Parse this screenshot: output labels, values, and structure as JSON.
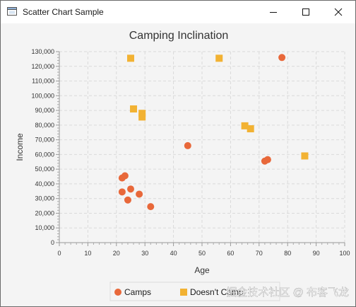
{
  "window": {
    "title": "Scatter Chart Sample"
  },
  "chart_data": {
    "type": "scatter",
    "title": "Camping Inclination",
    "xlabel": "Age",
    "ylabel": "Income",
    "xlim": [
      0,
      100
    ],
    "ylim": [
      0,
      130000
    ],
    "x_ticks": [
      "0",
      "10",
      "20",
      "30",
      "40",
      "50",
      "60",
      "70",
      "80",
      "90",
      "100"
    ],
    "y_ticks": [
      "0",
      "10,000",
      "20,000",
      "30,000",
      "40,000",
      "50,000",
      "60,000",
      "70,000",
      "80,000",
      "90,000",
      "100,000",
      "110,000",
      "120,000",
      "130,000"
    ],
    "grid": true,
    "legend_position": "bottom",
    "series": [
      {
        "name": "Camps",
        "color": "#e8683a",
        "marker": "circle",
        "points": [
          [
            22,
            44000
          ],
          [
            23,
            45500
          ],
          [
            22,
            34500
          ],
          [
            25,
            36500
          ],
          [
            24,
            29000
          ],
          [
            28,
            33000
          ],
          [
            32,
            24500
          ],
          [
            45,
            66000
          ],
          [
            72,
            55500
          ],
          [
            73,
            56500
          ],
          [
            78,
            126000
          ]
        ]
      },
      {
        "name": "Doesn't Camp",
        "color": "#f2b233",
        "marker": "square",
        "points": [
          [
            25,
            125500
          ],
          [
            56,
            125500
          ],
          [
            26,
            91000
          ],
          [
            29,
            88000
          ],
          [
            29,
            85500
          ],
          [
            65,
            79500
          ],
          [
            67,
            77500
          ],
          [
            86,
            59000
          ]
        ]
      }
    ]
  },
  "watermark": "掘金技术社区 @ 布客飞龙"
}
